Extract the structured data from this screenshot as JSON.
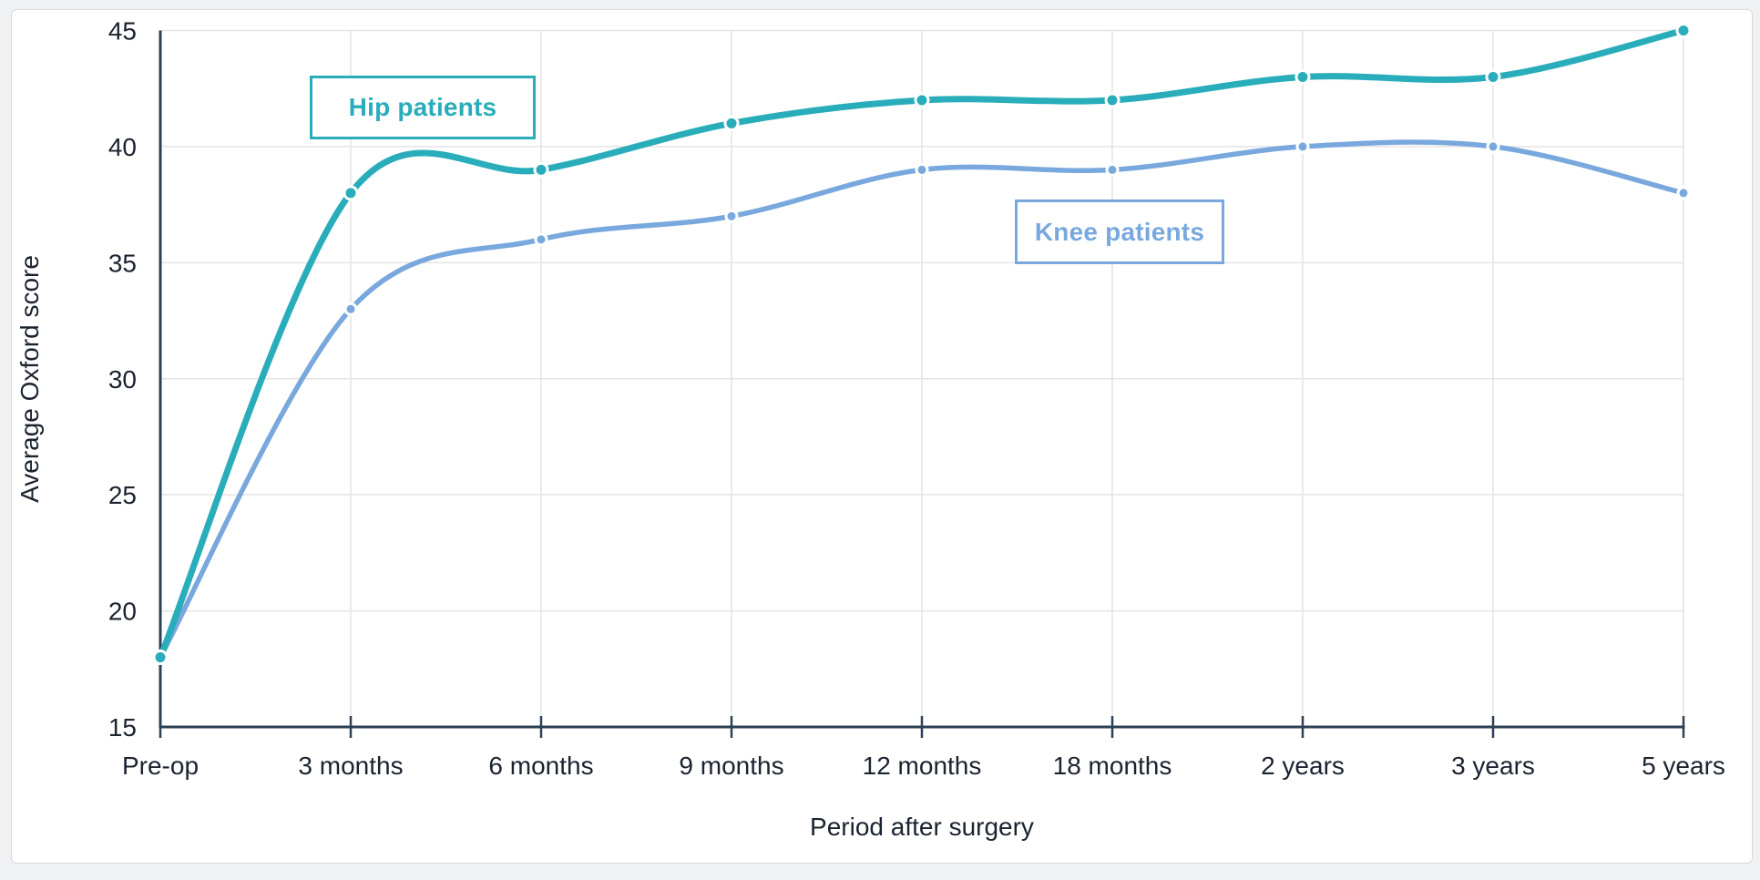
{
  "chart_data": {
    "type": "line",
    "line_style": "smooth",
    "title": "",
    "xlabel": "Period after surgery",
    "ylabel": "Average Oxford score",
    "categories": [
      "Pre-op",
      "3 months",
      "6 months",
      "9 months",
      "12 months",
      "18 months",
      "2 years",
      "3 years",
      "5 years"
    ],
    "ylim": [
      15,
      45
    ],
    "yticks": [
      15,
      20,
      25,
      30,
      35,
      40,
      45
    ],
    "grid": true,
    "legend_position": "inline-labels",
    "series": [
      {
        "name": "Hip patients",
        "color": "#2aadba",
        "values": [
          18,
          38,
          39,
          41,
          42,
          42,
          43,
          43,
          45
        ]
      },
      {
        "name": "Knee patients",
        "color": "#78a8dd",
        "values": [
          18,
          33,
          36,
          37,
          39,
          39,
          40,
          40,
          38
        ]
      }
    ],
    "colors": {
      "axis": "#2d4156",
      "text": "#1b2330",
      "grid": "#e4e4e4",
      "plot_background": "#ffffff",
      "page_background": "#f0f1f2"
    }
  }
}
